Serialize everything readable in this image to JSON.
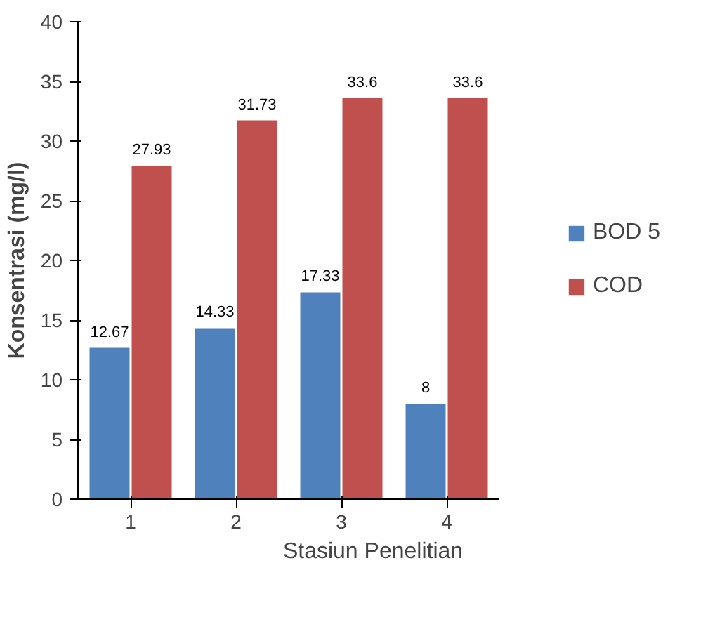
{
  "chart_data": {
    "type": "bar",
    "xlabel": "Stasiun Penelitian",
    "ylabel": "Konsentrasi (mg/l)",
    "categories": [
      "1",
      "2",
      "3",
      "4"
    ],
    "series": [
      {
        "name": "BOD 5",
        "color": "#4f81bd",
        "values": [
          12.67,
          14.33,
          17.33,
          8
        ]
      },
      {
        "name": "COD",
        "color": "#c0504d",
        "values": [
          27.93,
          31.73,
          33.6,
          33.6
        ]
      }
    ],
    "ylim": [
      0,
      40
    ],
    "yticks": [
      0,
      5,
      10,
      15,
      20,
      25,
      30,
      35,
      40
    ],
    "grid": false,
    "legend": "right",
    "data_labels": true
  }
}
